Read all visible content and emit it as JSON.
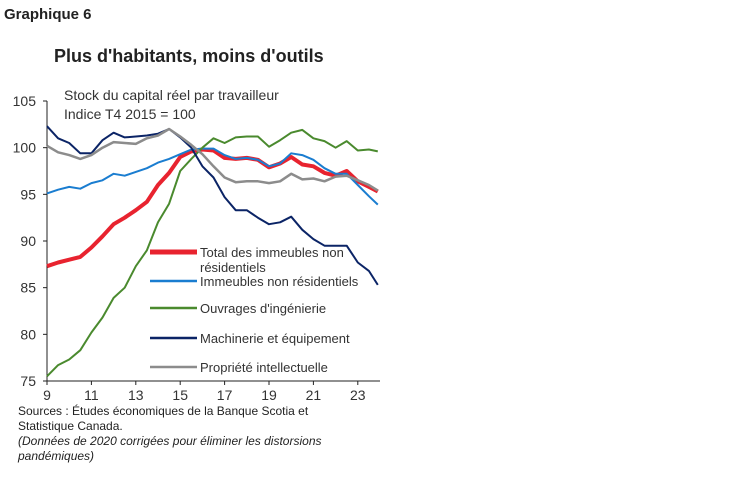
{
  "figure_label": "Graphique 6",
  "sources": "Sources : Études économiques de la Banque Scotia et Statistique Canada.",
  "note": "(Données de 2020 corrigées pour éliminer les distorsions pandémiques)",
  "chart_data": {
    "type": "line",
    "title": "Plus d'habitants, moins d'outils",
    "subtitle": [
      "Stock du capital réel par travailleur",
      "Indice T4 2015 = 100"
    ],
    "xlim": [
      2009,
      2024
    ],
    "ylim": [
      75,
      105
    ],
    "yticks": [
      75,
      80,
      85,
      90,
      95,
      100,
      105
    ],
    "xticks": [
      2009,
      2011,
      2013,
      2015,
      2017,
      2019,
      2021,
      2023
    ],
    "xtick_labels": [
      "9",
      "11",
      "13",
      "15",
      "17",
      "19",
      "21",
      "23"
    ],
    "grid": false,
    "legend_placement": "inside-lower-right",
    "x": [
      2009,
      2009.5,
      2010,
      2010.5,
      2011,
      2011.5,
      2012,
      2012.5,
      2013,
      2013.5,
      2014,
      2014.5,
      2015,
      2015.5,
      2016,
      2016.5,
      2017,
      2017.5,
      2018,
      2018.5,
      2019,
      2019.5,
      2020,
      2020.5,
      2021,
      2021.5,
      2022,
      2022.5,
      2023,
      2023.5,
      2023.9
    ],
    "series": [
      {
        "name": "Total des immeubles non résidentiels",
        "color": "#e8232f",
        "width": 4,
        "values": [
          87.3,
          87.7,
          88.0,
          88.3,
          89.3,
          90.5,
          91.8,
          92.5,
          93.3,
          94.2,
          96.0,
          97.3,
          99.0,
          99.6,
          99.8,
          99.7,
          98.9,
          98.8,
          98.9,
          98.7,
          97.9,
          98.3,
          99.0,
          98.2,
          98.0,
          97.3,
          97.0,
          97.5,
          96.4,
          95.8,
          95.3
        ]
      },
      {
        "name": "Immeubles non résidentiels",
        "color": "#1a7dd0",
        "width": 2,
        "values": [
          95.1,
          95.5,
          95.8,
          95.6,
          96.2,
          96.5,
          97.2,
          97.0,
          97.4,
          97.8,
          98.4,
          98.8,
          99.3,
          99.8,
          99.9,
          99.9,
          99.2,
          98.8,
          98.9,
          98.7,
          98.0,
          98.3,
          99.4,
          99.2,
          98.7,
          97.8,
          97.2,
          97.2,
          96.0,
          94.8,
          93.9
        ]
      },
      {
        "name": "Ouvrages d'ingénierie",
        "color": "#4a8a2e",
        "width": 2,
        "values": [
          75.5,
          76.7,
          77.3,
          78.3,
          80.2,
          81.8,
          83.9,
          85.0,
          87.3,
          89.0,
          92.0,
          94.0,
          97.5,
          98.8,
          100.0,
          101.0,
          100.5,
          101.1,
          101.2,
          101.2,
          100.1,
          100.8,
          101.6,
          101.9,
          101.0,
          100.7,
          100.0,
          100.7,
          99.7,
          99.8,
          99.6
        ]
      },
      {
        "name": "Machinerie et équipement",
        "color": "#0b2466",
        "width": 2,
        "values": [
          102.3,
          101.0,
          100.5,
          99.4,
          99.4,
          100.8,
          101.6,
          101.1,
          101.2,
          101.3,
          101.5,
          102.0,
          101.1,
          100.0,
          98.0,
          96.8,
          94.7,
          93.3,
          93.3,
          92.5,
          91.8,
          92.0,
          92.6,
          91.2,
          90.2,
          89.5,
          89.5,
          89.5,
          87.7,
          86.8,
          85.3
        ]
      },
      {
        "name": "Propriété intellectuelle",
        "color": "#8c8c8c",
        "width": 2.5,
        "values": [
          100.2,
          99.5,
          99.2,
          98.8,
          99.2,
          100.0,
          100.6,
          100.5,
          100.4,
          101.0,
          101.3,
          102.0,
          101.2,
          100.3,
          99.3,
          98.0,
          96.8,
          96.3,
          96.4,
          96.4,
          96.2,
          96.4,
          97.2,
          96.6,
          96.7,
          96.4,
          96.9,
          97.0,
          96.5,
          96.0,
          95.4
        ]
      }
    ]
  }
}
